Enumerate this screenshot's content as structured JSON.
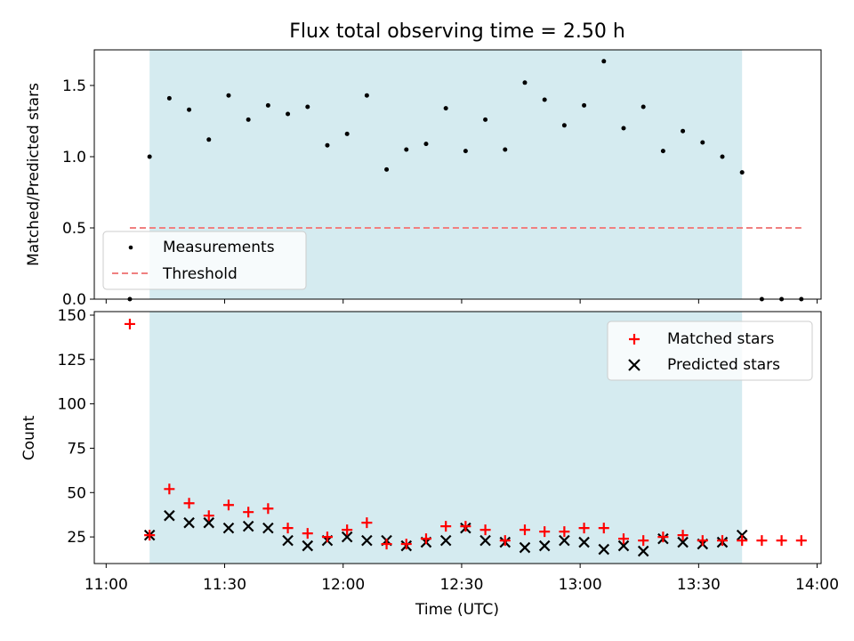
{
  "chart_data": [
    {
      "type": "scatter",
      "title": "Flux total observing time = 2.50 h",
      "xlabel": "",
      "ylabel": "Matched/Predicted stars",
      "xlim": [
        "10:57",
        "14:01"
      ],
      "ylim": [
        0,
        1.75
      ],
      "yticks": [
        0.0,
        0.5,
        1.0,
        1.5
      ],
      "yticklabels": [
        "0.0",
        "0.5",
        "1.0",
        "1.5"
      ],
      "grid": false,
      "legend_position": "lower-left",
      "observing_window": {
        "start": "11:11",
        "end": "13:41",
        "color": "#d5ebf0"
      },
      "series": [
        {
          "name": "Measurements",
          "marker": "dot",
          "color": "#000000",
          "x": [
            "11:06",
            "11:11",
            "11:16",
            "11:21",
            "11:26",
            "11:31",
            "11:36",
            "11:41",
            "11:46",
            "11:51",
            "11:56",
            "12:01",
            "12:06",
            "12:11",
            "12:16",
            "12:21",
            "12:26",
            "12:31",
            "12:36",
            "12:41",
            "12:46",
            "12:51",
            "12:56",
            "13:01",
            "13:06",
            "13:11",
            "13:16",
            "13:21",
            "13:26",
            "13:31",
            "13:36",
            "13:41",
            "13:46",
            "13:51",
            "13:56"
          ],
          "y": [
            0.0,
            1.0,
            1.41,
            1.33,
            1.12,
            1.43,
            1.26,
            1.36,
            1.3,
            1.35,
            1.08,
            1.16,
            1.43,
            0.91,
            1.05,
            1.09,
            1.34,
            1.04,
            1.26,
            1.05,
            1.52,
            1.4,
            1.22,
            1.36,
            1.67,
            1.2,
            1.35,
            1.04,
            1.18,
            1.1,
            1.0,
            0.89,
            0.0,
            0.0,
            0.0
          ]
        },
        {
          "name": "Threshold",
          "marker": "dashed-line",
          "color": "#f08080",
          "x": [
            "11:06",
            "13:56"
          ],
          "y": [
            0.5,
            0.5
          ]
        }
      ]
    },
    {
      "type": "scatter",
      "title": "",
      "xlabel": "Time (UTC)",
      "ylabel": "Count",
      "xlim": [
        "10:57",
        "14:01"
      ],
      "ylim": [
        10,
        152
      ],
      "xticks": [
        "11:00",
        "11:30",
        "12:00",
        "12:30",
        "13:00",
        "13:30",
        "14:00"
      ],
      "yticks": [
        25,
        50,
        75,
        100,
        125,
        150
      ],
      "yticklabels": [
        "25",
        "50",
        "75",
        "100",
        "125",
        "150"
      ],
      "grid": false,
      "legend_position": "upper-right",
      "observing_window": {
        "start": "11:11",
        "end": "13:41",
        "color": "#d5ebf0"
      },
      "series": [
        {
          "name": "Matched stars",
          "marker": "plus",
          "color": "#ff0000",
          "x": [
            "11:06",
            "11:11",
            "11:16",
            "11:21",
            "11:26",
            "11:31",
            "11:36",
            "11:41",
            "11:46",
            "11:51",
            "11:56",
            "12:01",
            "12:06",
            "12:11",
            "12:16",
            "12:21",
            "12:26",
            "12:31",
            "12:36",
            "12:41",
            "12:46",
            "12:51",
            "12:56",
            "13:01",
            "13:06",
            "13:11",
            "13:16",
            "13:21",
            "13:26",
            "13:31",
            "13:36",
            "13:41",
            "13:46",
            "13:51",
            "13:56"
          ],
          "y": [
            145,
            26,
            52,
            44,
            37,
            43,
            39,
            41,
            30,
            27,
            25,
            29,
            33,
            21,
            21,
            24,
            31,
            31,
            29,
            23,
            29,
            28,
            28,
            30,
            30,
            24,
            23,
            25,
            26,
            23,
            23,
            23,
            23,
            23,
            23
          ]
        },
        {
          "name": "Predicted stars",
          "marker": "x",
          "color": "#000000",
          "x": [
            "11:11",
            "11:16",
            "11:21",
            "11:26",
            "11:31",
            "11:36",
            "11:41",
            "11:46",
            "11:51",
            "11:56",
            "12:01",
            "12:06",
            "12:11",
            "12:16",
            "12:21",
            "12:26",
            "12:31",
            "12:36",
            "12:41",
            "12:46",
            "12:51",
            "12:56",
            "13:01",
            "13:06",
            "13:11",
            "13:16",
            "13:21",
            "13:26",
            "13:31",
            "13:36",
            "13:41"
          ],
          "y": [
            26,
            37,
            33,
            33,
            30,
            31,
            30,
            23,
            20,
            23,
            25,
            23,
            23,
            20,
            22,
            23,
            30,
            23,
            22,
            19,
            20,
            23,
            22,
            18,
            20,
            17,
            24,
            22,
            21,
            22,
            26
          ]
        }
      ]
    }
  ]
}
